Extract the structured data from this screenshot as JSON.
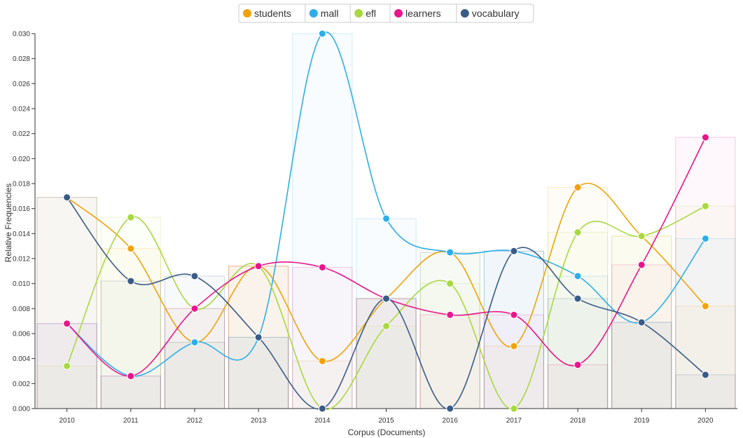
{
  "chart_data": {
    "type": "line",
    "xlabel": "Corpus (Documents)",
    "ylabel": "Relative Frequencies",
    "categories": [
      "2010",
      "2011",
      "2012",
      "2013",
      "2014",
      "2015",
      "2016",
      "2017",
      "2018",
      "2019",
      "2020"
    ],
    "ylim": [
      0,
      0.03
    ],
    "yticks": [
      "0.000",
      "0.002",
      "0.004",
      "0.006",
      "0.008",
      "0.010",
      "0.012",
      "0.014",
      "0.016",
      "0.018",
      "0.020",
      "0.022",
      "0.024",
      "0.026",
      "0.028",
      "0.030"
    ],
    "legend_position": "top-center",
    "grid": false,
    "series": [
      {
        "name": "students",
        "color": "#f0a30a",
        "values": [
          0.0169,
          0.0128,
          0.0053,
          0.0114,
          0.0038,
          0.0088,
          0.0125,
          0.005,
          0.0177,
          0.0138,
          0.0082
        ]
      },
      {
        "name": "mall",
        "color": "#2eaee8",
        "values": [
          0.0068,
          0.0026,
          0.0053,
          0.0057,
          0.03,
          0.0152,
          0.0125,
          0.0126,
          0.0106,
          0.0069,
          0.0136
        ]
      },
      {
        "name": "efl",
        "color": "#a8d840",
        "values": [
          0.0034,
          0.0153,
          0.008,
          0.0114,
          0.0,
          0.0066,
          0.01,
          0.0,
          0.0141,
          0.0138,
          0.0162
        ]
      },
      {
        "name": "learners",
        "color": "#e8168a",
        "values": [
          0.0068,
          0.0026,
          0.008,
          0.0114,
          0.0113,
          0.0088,
          0.0075,
          0.0075,
          0.0035,
          0.0115,
          0.0217
        ]
      },
      {
        "name": "vocabulary",
        "color": "#3a5b85",
        "values": [
          0.0169,
          0.0102,
          0.0106,
          0.0057,
          0.0,
          0.0088,
          0.0,
          0.0126,
          0.0088,
          0.0069,
          0.0027
        ]
      }
    ]
  }
}
